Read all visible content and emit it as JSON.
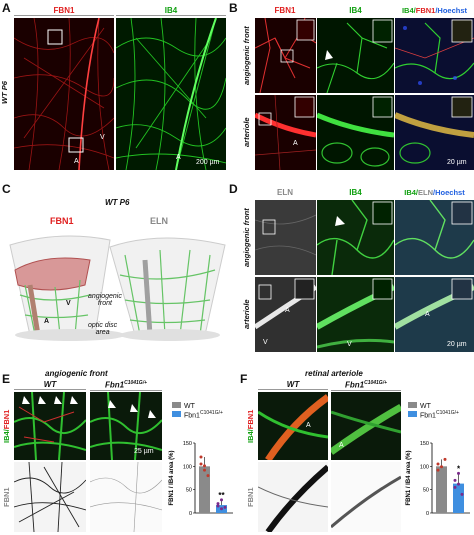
{
  "panels": {
    "A": {
      "label": "A",
      "col1": "FBN1",
      "col2": "IB4",
      "row": "WT P6",
      "letters": [
        "V",
        "A",
        "A"
      ],
      "scale": "200 µm"
    },
    "B": {
      "label": "B",
      "col1": "FBN1",
      "col2": "IB4",
      "col3": [
        "IB4/",
        "FBN1",
        "/Hoechst"
      ],
      "rows": [
        "angiogenic front",
        "arteriole"
      ],
      "letter": "A",
      "scale": "20 µm"
    },
    "C": {
      "label": "C",
      "title": "WT P6",
      "fbn1": "FBN1",
      "eln": "ELN",
      "angio": [
        "angiogenic",
        "front"
      ],
      "optic": [
        "optic disc",
        "area"
      ],
      "a": "A",
      "v": "V"
    },
    "D": {
      "label": "D",
      "col1": "ELN",
      "col2": "IB4",
      "col3": [
        "IB4/",
        "ELN",
        "/Hoechst"
      ],
      "rows": [
        "angiogenic front",
        "arteriole"
      ],
      "letters": [
        "A",
        "V",
        "V",
        "A"
      ],
      "scale": "20 µm"
    },
    "E": {
      "label": "E",
      "title": "angiogenic front",
      "wt": "WT",
      "mut": "Fbn1",
      "mut_sup": "C1041G/+",
      "row1": [
        "IB4/",
        "FBN1"
      ],
      "row2": "FBN1",
      "scale": "25 µm"
    },
    "F": {
      "label": "F",
      "title": "retinal arteriole",
      "wt": "WT",
      "mut": "Fbn1",
      "mut_sup": "C1041G/+",
      "row1": [
        "IB4/",
        "FBN1"
      ],
      "row2": "FBN1",
      "letters": [
        "A",
        "A"
      ]
    }
  },
  "chart_data": [
    {
      "type": "bar",
      "panel": "E",
      "categories": [
        "WT",
        "Fbn1 C1041G/+"
      ],
      "values": [
        100,
        17
      ],
      "points": [
        [
          120,
          92,
          80,
          105,
          101
        ],
        [
          20,
          28,
          12,
          15,
          9
        ]
      ],
      "colors": [
        "#8a8a8a",
        "#3f8fe0"
      ],
      "ylabel": "FBN1 / IB4 area (%)",
      "ylim": [
        0,
        150
      ],
      "yticks": [
        "0",
        "50",
        "100",
        "150"
      ],
      "significance": "**",
      "legend": [
        "WT",
        "Fbn1"
      ],
      "legend_sup": "C1041G/+"
    },
    {
      "type": "bar",
      "panel": "F",
      "categories": [
        "WT",
        "Fbn1 C1041G/+"
      ],
      "values": [
        100,
        63
      ],
      "points": [
        [
          105,
          99,
          115,
          92
        ],
        [
          55,
          85,
          40,
          70,
          62
        ]
      ],
      "colors": [
        "#8a8a8a",
        "#3f8fe0"
      ],
      "ylabel": "FBN1 / IB4 area (%)",
      "ylim": [
        0,
        150
      ],
      "yticks": [
        "0",
        "50",
        "100",
        "150"
      ],
      "significance": "*",
      "legend": [
        "WT",
        "Fbn1"
      ],
      "legend_sup": "C1041G/+"
    }
  ]
}
